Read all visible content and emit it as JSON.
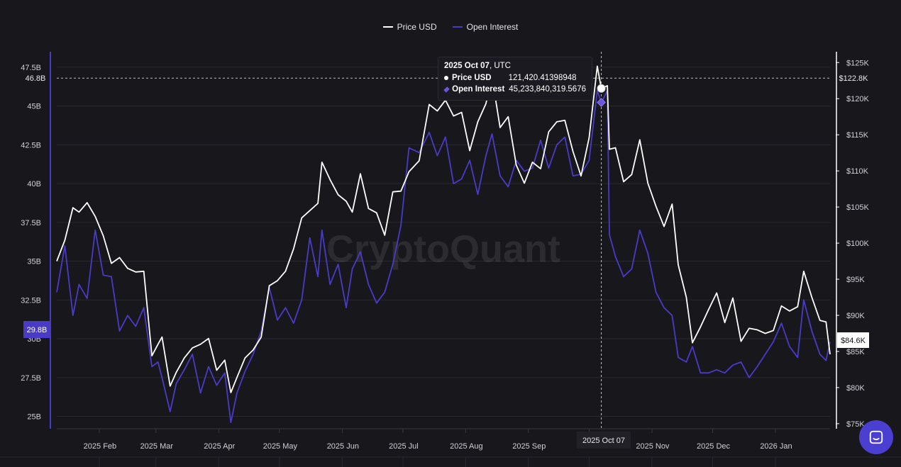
{
  "legend": [
    {
      "label": "Price USD",
      "color": "#ffffff"
    },
    {
      "label": "Open Interest",
      "color": "#4a3bc7"
    }
  ],
  "watermark": "CryptoQuant",
  "tooltip": {
    "date": "2025 Oct 07",
    "timezone": ", UTC",
    "price_label": "Price USD",
    "price_value": "121,420.41398948",
    "oi_label": "Open Interest",
    "oi_value": "45,233,840,319.5676"
  },
  "crosshair": {
    "date_label": "2025 Oct 07",
    "left_value_label": "46.8B",
    "right_value_label": "$122.8K"
  },
  "current_values": {
    "open_interest_label": "29.8B",
    "price_label": "$84.6K"
  },
  "colors": {
    "background": "#18171c",
    "price": "#ffffff",
    "open_interest": "#4a3bc7",
    "oi_badge": "#4a3bc7"
  },
  "chat_icon": "chat-bubble-icon",
  "chart_data": {
    "type": "line",
    "xlabel": "",
    "x_ticks": [
      "2025 Feb",
      "2025 Mar",
      "2025 Apr",
      "2025 May",
      "2025 Jun",
      "2025 Jul",
      "2025 Aug",
      "2025 Sep",
      "2025 Oct",
      "2025 Nov",
      "2025 Dec",
      "2026 Jan"
    ],
    "x_range": [
      "2025-01-11",
      "2026-01-28"
    ],
    "y_left": {
      "label": "",
      "ticks": [
        "25B",
        "27.5B",
        "30B",
        "32.5B",
        "35B",
        "37.5B",
        "40B",
        "42.5B",
        "45B",
        "47.5B"
      ],
      "range": [
        24.2,
        48.5
      ],
      "unit": "USD billions"
    },
    "y_right": {
      "label": "",
      "ticks": [
        "$75K",
        "$80K",
        "$85K",
        "$90K",
        "$95K",
        "$100K",
        "$105K",
        "$110K",
        "$115K",
        "$120K",
        "$125K"
      ],
      "range": [
        74.3,
        126.5
      ],
      "unit": "USD thousands"
    },
    "grid": true,
    "legend_position": "top-center",
    "series": [
      {
        "name": "Price USD",
        "axis": "right",
        "dates": [
          "2025-01-11",
          "2025-01-15",
          "2025-01-19",
          "2025-01-22",
          "2025-01-26",
          "2025-01-30",
          "2025-02-03",
          "2025-02-07",
          "2025-02-11",
          "2025-02-15",
          "2025-02-19",
          "2025-02-23",
          "2025-02-27",
          "2025-03-02",
          "2025-03-04",
          "2025-03-08",
          "2025-03-11",
          "2025-03-15",
          "2025-03-19",
          "2025-03-23",
          "2025-03-27",
          "2025-03-31",
          "2025-04-04",
          "2025-04-07",
          "2025-04-10",
          "2025-04-14",
          "2025-04-18",
          "2025-04-22",
          "2025-04-26",
          "2025-04-30",
          "2025-05-04",
          "2025-05-08",
          "2025-05-12",
          "2025-05-16",
          "2025-05-20",
          "2025-05-22",
          "2025-05-26",
          "2025-05-30",
          "2025-06-03",
          "2025-06-06",
          "2025-06-10",
          "2025-06-14",
          "2025-06-18",
          "2025-06-22",
          "2025-06-26",
          "2025-06-30",
          "2025-07-04",
          "2025-07-09",
          "2025-07-14",
          "2025-07-18",
          "2025-07-22",
          "2025-07-26",
          "2025-07-30",
          "2025-08-03",
          "2025-08-07",
          "2025-08-11",
          "2025-08-14",
          "2025-08-18",
          "2025-08-22",
          "2025-08-26",
          "2025-08-30",
          "2025-09-03",
          "2025-09-07",
          "2025-09-11",
          "2025-09-15",
          "2025-09-19",
          "2025-09-23",
          "2025-09-27",
          "2025-10-01",
          "2025-10-05",
          "2025-10-07",
          "2025-10-10",
          "2025-10-11",
          "2025-10-14",
          "2025-10-18",
          "2025-10-22",
          "2025-10-26",
          "2025-10-30",
          "2025-11-03",
          "2025-11-07",
          "2025-11-11",
          "2025-11-14",
          "2025-11-18",
          "2025-11-21",
          "2025-11-25",
          "2025-11-29",
          "2025-12-03",
          "2025-12-07",
          "2025-12-11",
          "2025-12-15",
          "2025-12-19",
          "2025-12-23",
          "2025-12-27",
          "2025-12-31",
          "2026-01-04",
          "2026-01-08",
          "2026-01-12",
          "2026-01-15",
          "2026-01-19",
          "2026-01-23",
          "2026-01-26",
          "2026-01-28"
        ],
        "values": [
          97.5,
          100.4,
          104.9,
          104.3,
          105.6,
          103.7,
          101.0,
          97.2,
          98.0,
          96.5,
          96.0,
          96.1,
          84.4,
          86.0,
          87.0,
          80.2,
          82.1,
          84.1,
          85.5,
          86.0,
          86.8,
          82.4,
          83.8,
          79.3,
          81.4,
          84.1,
          85.2,
          87.0,
          94.1,
          94.8,
          96.1,
          99.2,
          103.5,
          104.5,
          105.5,
          111.2,
          108.8,
          106.7,
          105.8,
          104.3,
          109.6,
          104.8,
          104.2,
          101.1,
          107.1,
          107.2,
          109.9,
          111.4,
          119.2,
          118.3,
          119.8,
          117.6,
          118.1,
          112.8,
          116.8,
          119.3,
          123.0,
          116.0,
          117.5,
          110.8,
          108.3,
          111.2,
          110.3,
          115.4,
          116.8,
          117.0,
          112.7,
          109.3,
          114.6,
          124.5,
          121.4,
          121.8,
          113.0,
          113.2,
          108.5,
          109.5,
          114.3,
          108.3,
          105.1,
          102.3,
          105.4,
          97.0,
          92.5,
          86.2,
          88.4,
          90.8,
          93.1,
          89.0,
          92.4,
          86.4,
          88.2,
          88.0,
          87.5,
          87.9,
          91.3,
          90.6,
          91.2,
          96.1,
          92.5,
          89.3,
          89.1,
          84.6
        ]
      },
      {
        "name": "Open Interest",
        "axis": "left",
        "dates": [
          "2025-01-11",
          "2025-01-15",
          "2025-01-19",
          "2025-01-22",
          "2025-01-26",
          "2025-01-30",
          "2025-02-03",
          "2025-02-07",
          "2025-02-11",
          "2025-02-15",
          "2025-02-19",
          "2025-02-23",
          "2025-02-27",
          "2025-03-02",
          "2025-03-04",
          "2025-03-08",
          "2025-03-11",
          "2025-03-15",
          "2025-03-19",
          "2025-03-23",
          "2025-03-27",
          "2025-03-31",
          "2025-04-04",
          "2025-04-07",
          "2025-04-10",
          "2025-04-14",
          "2025-04-18",
          "2025-04-22",
          "2025-04-26",
          "2025-04-30",
          "2025-05-04",
          "2025-05-08",
          "2025-05-12",
          "2025-05-16",
          "2025-05-20",
          "2025-05-22",
          "2025-05-26",
          "2025-05-30",
          "2025-06-03",
          "2025-06-06",
          "2025-06-10",
          "2025-06-14",
          "2025-06-18",
          "2025-06-22",
          "2025-06-26",
          "2025-06-30",
          "2025-07-04",
          "2025-07-09",
          "2025-07-14",
          "2025-07-18",
          "2025-07-22",
          "2025-07-26",
          "2025-07-30",
          "2025-08-03",
          "2025-08-07",
          "2025-08-11",
          "2025-08-14",
          "2025-08-18",
          "2025-08-22",
          "2025-08-26",
          "2025-08-30",
          "2025-09-03",
          "2025-09-07",
          "2025-09-11",
          "2025-09-15",
          "2025-09-19",
          "2025-09-23",
          "2025-09-27",
          "2025-10-01",
          "2025-10-05",
          "2025-10-07",
          "2025-10-10",
          "2025-10-11",
          "2025-10-14",
          "2025-10-18",
          "2025-10-22",
          "2025-10-26",
          "2025-10-30",
          "2025-11-03",
          "2025-11-07",
          "2025-11-11",
          "2025-11-14",
          "2025-11-18",
          "2025-11-21",
          "2025-11-25",
          "2025-11-29",
          "2025-12-03",
          "2025-12-07",
          "2025-12-11",
          "2025-12-15",
          "2025-12-19",
          "2025-12-23",
          "2025-12-27",
          "2025-12-31",
          "2026-01-04",
          "2026-01-08",
          "2026-01-12",
          "2026-01-15",
          "2026-01-19",
          "2026-01-23",
          "2026-01-26",
          "2026-01-28"
        ],
        "values": [
          33.0,
          36.0,
          31.5,
          33.5,
          32.6,
          37.0,
          34.1,
          34.0,
          30.5,
          31.5,
          30.8,
          32.0,
          28.2,
          28.5,
          27.5,
          25.3,
          27.1,
          28.0,
          29.0,
          26.5,
          28.2,
          27.0,
          27.8,
          24.6,
          26.5,
          27.9,
          29.0,
          30.5,
          33.3,
          31.2,
          32.0,
          31.0,
          32.5,
          36.5,
          34.0,
          37.0,
          33.5,
          34.8,
          32.0,
          34.5,
          35.6,
          33.5,
          32.3,
          33.0,
          34.8,
          37.3,
          42.3,
          42.0,
          43.3,
          41.8,
          43.0,
          40.0,
          40.3,
          41.5,
          39.3,
          41.8,
          43.2,
          40.5,
          39.8,
          41.5,
          40.8,
          41.0,
          42.8,
          41.0,
          42.5,
          43.0,
          40.5,
          40.6,
          41.5,
          46.0,
          45.2,
          46.0,
          36.7,
          35.3,
          34.0,
          34.5,
          37.0,
          35.5,
          33.0,
          32.0,
          31.5,
          28.8,
          28.5,
          29.5,
          27.8,
          27.8,
          28.0,
          27.8,
          28.3,
          28.5,
          27.5,
          28.2,
          29.0,
          29.8,
          31.0,
          29.5,
          28.8,
          32.5,
          30.5,
          29.0,
          28.6,
          29.8
        ]
      }
    ]
  }
}
